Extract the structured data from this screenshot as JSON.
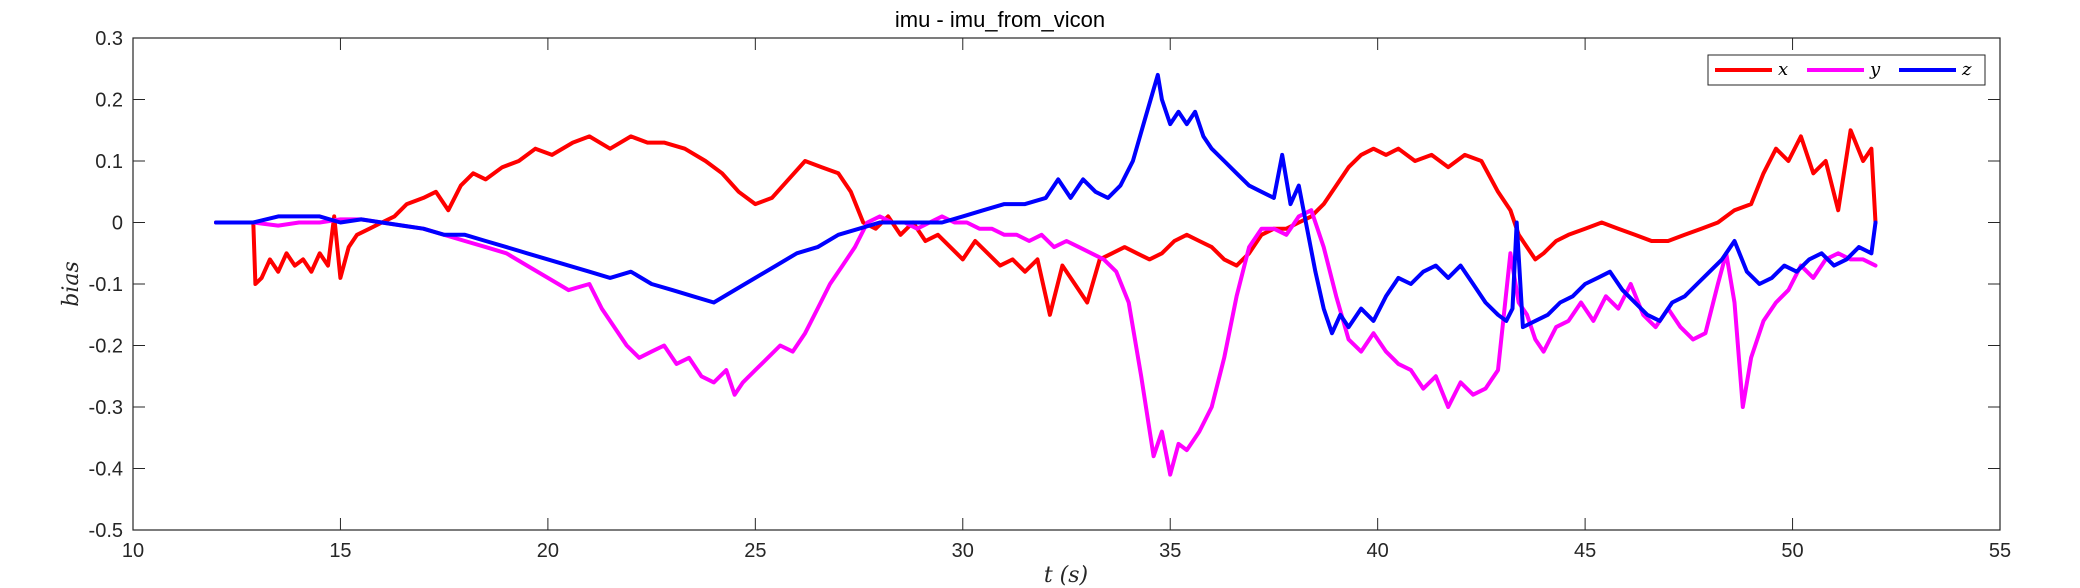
{
  "chart_data": {
    "type": "line",
    "title": "imu - imu_from_vicon",
    "xlabel": "t (s)",
    "ylabel": "bias",
    "xlim": [
      10,
      55
    ],
    "ylim": [
      -0.5,
      0.3
    ],
    "xticks": [
      10,
      15,
      20,
      25,
      30,
      35,
      40,
      45,
      50,
      55
    ],
    "yticks": [
      -0.5,
      -0.4,
      -0.3,
      -0.2,
      -0.1,
      0,
      0.1,
      0.2,
      0.3
    ],
    "xtick_labels": [
      "10",
      "15",
      "20",
      "25",
      "30",
      "35",
      "40",
      "45",
      "50",
      "55"
    ],
    "ytick_labels": [
      "-0.5",
      "-0.4",
      "-0.3",
      "-0.2",
      "-0.1",
      "0",
      "0.1",
      "0.2",
      "0.3"
    ],
    "grid": false,
    "legend_position": "top-right",
    "series": [
      {
        "name": "x",
        "color": "#ff0000",
        "x": [
          12.0,
          12.9,
          12.95,
          13.1,
          13.3,
          13.5,
          13.7,
          13.9,
          14.1,
          14.3,
          14.5,
          14.7,
          14.85,
          15.0,
          15.2,
          15.4,
          15.7,
          16.0,
          16.3,
          16.6,
          17.0,
          17.3,
          17.6,
          17.9,
          18.2,
          18.5,
          18.9,
          19.3,
          19.7,
          20.1,
          20.6,
          21.0,
          21.5,
          22.0,
          22.4,
          22.8,
          23.3,
          23.8,
          24.2,
          24.6,
          25.0,
          25.4,
          25.8,
          26.2,
          26.6,
          27.0,
          27.3,
          27.6,
          27.9,
          28.2,
          28.5,
          28.8,
          29.1,
          29.4,
          29.7,
          30.0,
          30.3,
          30.6,
          30.9,
          31.2,
          31.5,
          31.8,
          32.1,
          32.4,
          32.7,
          33.0,
          33.3,
          33.6,
          33.9,
          34.2,
          34.5,
          34.8,
          35.1,
          35.4,
          35.7,
          36.0,
          36.3,
          36.6,
          36.9,
          37.2,
          37.5,
          37.8,
          38.1,
          38.4,
          38.7,
          39.0,
          39.3,
          39.6,
          39.9,
          40.2,
          40.5,
          40.9,
          41.3,
          41.7,
          42.1,
          42.5,
          42.9,
          43.2,
          43.4,
          43.6,
          43.8,
          44.0,
          44.3,
          44.6,
          45.0,
          45.4,
          45.8,
          46.2,
          46.6,
          47.0,
          47.4,
          47.8,
          48.2,
          48.6,
          49.0,
          49.3,
          49.6,
          49.9,
          50.2,
          50.5,
          50.8,
          51.1,
          51.4,
          51.7,
          51.9,
          52.0
        ],
        "values": [
          0.0,
          0.0,
          -0.1,
          -0.09,
          -0.06,
          -0.08,
          -0.05,
          -0.07,
          -0.06,
          -0.08,
          -0.05,
          -0.07,
          0.01,
          -0.09,
          -0.04,
          -0.02,
          -0.01,
          0.0,
          0.01,
          0.03,
          0.04,
          0.05,
          0.02,
          0.06,
          0.08,
          0.07,
          0.09,
          0.1,
          0.12,
          0.11,
          0.13,
          0.14,
          0.12,
          0.14,
          0.13,
          0.13,
          0.12,
          0.1,
          0.08,
          0.05,
          0.03,
          0.04,
          0.07,
          0.1,
          0.09,
          0.08,
          0.05,
          0.0,
          -0.01,
          0.01,
          -0.02,
          0.0,
          -0.03,
          -0.02,
          -0.04,
          -0.06,
          -0.03,
          -0.05,
          -0.07,
          -0.06,
          -0.08,
          -0.06,
          -0.15,
          -0.07,
          -0.1,
          -0.13,
          -0.06,
          -0.05,
          -0.04,
          -0.05,
          -0.06,
          -0.05,
          -0.03,
          -0.02,
          -0.03,
          -0.04,
          -0.06,
          -0.07,
          -0.05,
          -0.02,
          -0.01,
          -0.01,
          0.0,
          0.01,
          0.03,
          0.06,
          0.09,
          0.11,
          0.12,
          0.11,
          0.12,
          0.1,
          0.11,
          0.09,
          0.11,
          0.1,
          0.05,
          0.02,
          -0.02,
          -0.04,
          -0.06,
          -0.05,
          -0.03,
          -0.02,
          -0.01,
          0.0,
          -0.01,
          -0.02,
          -0.03,
          -0.03,
          -0.02,
          -0.01,
          0.0,
          0.02,
          0.03,
          0.08,
          0.12,
          0.1,
          0.14,
          0.08,
          0.1,
          0.02,
          0.15,
          0.1,
          0.12,
          0.0
        ]
      },
      {
        "name": "y",
        "color": "#ff00ff",
        "x": [
          12.0,
          12.9,
          13.5,
          14.0,
          14.5,
          15.0,
          15.5,
          16.0,
          16.5,
          17.0,
          17.5,
          18.0,
          18.5,
          19.0,
          19.5,
          20.0,
          20.5,
          21.0,
          21.3,
          21.6,
          21.9,
          22.2,
          22.5,
          22.8,
          23.1,
          23.4,
          23.7,
          24.0,
          24.3,
          24.5,
          24.7,
          25.0,
          25.3,
          25.6,
          25.9,
          26.2,
          26.5,
          26.8,
          27.1,
          27.4,
          27.7,
          28.0,
          28.3,
          28.6,
          28.9,
          29.2,
          29.5,
          29.8,
          30.1,
          30.4,
          30.7,
          31.0,
          31.3,
          31.6,
          31.9,
          32.2,
          32.5,
          32.8,
          33.1,
          33.4,
          33.7,
          34.0,
          34.3,
          34.6,
          34.8,
          35.0,
          35.2,
          35.4,
          35.7,
          36.0,
          36.3,
          36.6,
          36.9,
          37.2,
          37.5,
          37.8,
          38.1,
          38.4,
          38.7,
          39.0,
          39.3,
          39.6,
          39.9,
          40.2,
          40.5,
          40.8,
          41.1,
          41.4,
          41.7,
          42.0,
          42.3,
          42.6,
          42.9,
          43.2,
          43.4,
          43.6,
          43.8,
          44.0,
          44.3,
          44.6,
          44.9,
          45.2,
          45.5,
          45.8,
          46.1,
          46.4,
          46.7,
          47.0,
          47.3,
          47.6,
          47.9,
          48.2,
          48.4,
          48.6,
          48.8,
          49.0,
          49.3,
          49.6,
          49.9,
          50.2,
          50.5,
          50.8,
          51.1,
          51.4,
          51.7,
          52.0
        ],
        "values": [
          0.0,
          0.0,
          -0.005,
          0.0,
          0.0,
          0.005,
          0.005,
          0.0,
          -0.005,
          -0.01,
          -0.02,
          -0.03,
          -0.04,
          -0.05,
          -0.07,
          -0.09,
          -0.11,
          -0.1,
          -0.14,
          -0.17,
          -0.2,
          -0.22,
          -0.21,
          -0.2,
          -0.23,
          -0.22,
          -0.25,
          -0.26,
          -0.24,
          -0.28,
          -0.26,
          -0.24,
          -0.22,
          -0.2,
          -0.21,
          -0.18,
          -0.14,
          -0.1,
          -0.07,
          -0.04,
          0.0,
          0.01,
          0.0,
          0.0,
          -0.01,
          0.0,
          0.01,
          0.0,
          0.0,
          -0.01,
          -0.01,
          -0.02,
          -0.02,
          -0.03,
          -0.02,
          -0.04,
          -0.03,
          -0.04,
          -0.05,
          -0.06,
          -0.08,
          -0.13,
          -0.25,
          -0.38,
          -0.34,
          -0.41,
          -0.36,
          -0.37,
          -0.34,
          -0.3,
          -0.22,
          -0.12,
          -0.04,
          -0.01,
          -0.01,
          -0.02,
          0.01,
          0.02,
          -0.04,
          -0.12,
          -0.19,
          -0.21,
          -0.18,
          -0.21,
          -0.23,
          -0.24,
          -0.27,
          -0.25,
          -0.3,
          -0.26,
          -0.28,
          -0.27,
          -0.24,
          -0.05,
          -0.13,
          -0.15,
          -0.19,
          -0.21,
          -0.17,
          -0.16,
          -0.13,
          -0.16,
          -0.12,
          -0.14,
          -0.1,
          -0.15,
          -0.17,
          -0.14,
          -0.17,
          -0.19,
          -0.18,
          -0.1,
          -0.05,
          -0.13,
          -0.3,
          -0.22,
          -0.16,
          -0.13,
          -0.11,
          -0.07,
          -0.09,
          -0.06,
          -0.05,
          -0.06,
          -0.06,
          -0.07
        ]
      },
      {
        "name": "z",
        "color": "#0000ff",
        "x": [
          12.0,
          12.9,
          13.5,
          14.0,
          14.5,
          15.0,
          15.5,
          16.0,
          16.5,
          17.0,
          17.5,
          18.0,
          18.5,
          19.0,
          19.5,
          20.0,
          20.5,
          21.0,
          21.5,
          22.0,
          22.5,
          23.0,
          23.5,
          24.0,
          24.5,
          25.0,
          25.5,
          26.0,
          26.5,
          27.0,
          27.5,
          28.0,
          28.5,
          29.0,
          29.5,
          30.0,
          30.5,
          31.0,
          31.5,
          32.0,
          32.3,
          32.6,
          32.9,
          33.2,
          33.5,
          33.8,
          34.1,
          34.4,
          34.7,
          34.8,
          35.0,
          35.2,
          35.4,
          35.6,
          35.8,
          36.0,
          36.3,
          36.6,
          36.9,
          37.2,
          37.5,
          37.7,
          37.9,
          38.1,
          38.3,
          38.5,
          38.7,
          38.9,
          39.1,
          39.3,
          39.6,
          39.9,
          40.2,
          40.5,
          40.8,
          41.1,
          41.4,
          41.7,
          42.0,
          42.3,
          42.6,
          42.9,
          43.1,
          43.25,
          43.35,
          43.5,
          43.8,
          44.1,
          44.4,
          44.7,
          45.0,
          45.3,
          45.6,
          45.9,
          46.2,
          46.5,
          46.8,
          47.1,
          47.4,
          47.7,
          48.0,
          48.3,
          48.6,
          48.9,
          49.2,
          49.5,
          49.8,
          50.1,
          50.4,
          50.7,
          51.0,
          51.3,
          51.6,
          51.9,
          52.0
        ],
        "values": [
          0.0,
          0.0,
          0.01,
          0.01,
          0.01,
          0.0,
          0.005,
          0.0,
          -0.005,
          -0.01,
          -0.02,
          -0.02,
          -0.03,
          -0.04,
          -0.05,
          -0.06,
          -0.07,
          -0.08,
          -0.09,
          -0.08,
          -0.1,
          -0.11,
          -0.12,
          -0.13,
          -0.11,
          -0.09,
          -0.07,
          -0.05,
          -0.04,
          -0.02,
          -0.01,
          0.0,
          0.0,
          0.0,
          0.0,
          0.01,
          0.02,
          0.03,
          0.03,
          0.04,
          0.07,
          0.04,
          0.07,
          0.05,
          0.04,
          0.06,
          0.1,
          0.17,
          0.24,
          0.2,
          0.16,
          0.18,
          0.16,
          0.18,
          0.14,
          0.12,
          0.1,
          0.08,
          0.06,
          0.05,
          0.04,
          0.11,
          0.03,
          0.06,
          -0.01,
          -0.08,
          -0.14,
          -0.18,
          -0.15,
          -0.17,
          -0.14,
          -0.16,
          -0.12,
          -0.09,
          -0.1,
          -0.08,
          -0.07,
          -0.09,
          -0.07,
          -0.1,
          -0.13,
          -0.15,
          -0.16,
          -0.14,
          0.0,
          -0.17,
          -0.16,
          -0.15,
          -0.13,
          -0.12,
          -0.1,
          -0.09,
          -0.08,
          -0.11,
          -0.13,
          -0.15,
          -0.16,
          -0.13,
          -0.12,
          -0.1,
          -0.08,
          -0.06,
          -0.03,
          -0.08,
          -0.1,
          -0.09,
          -0.07,
          -0.08,
          -0.06,
          -0.05,
          -0.07,
          -0.06,
          -0.04,
          -0.05,
          0.0
        ]
      }
    ]
  }
}
